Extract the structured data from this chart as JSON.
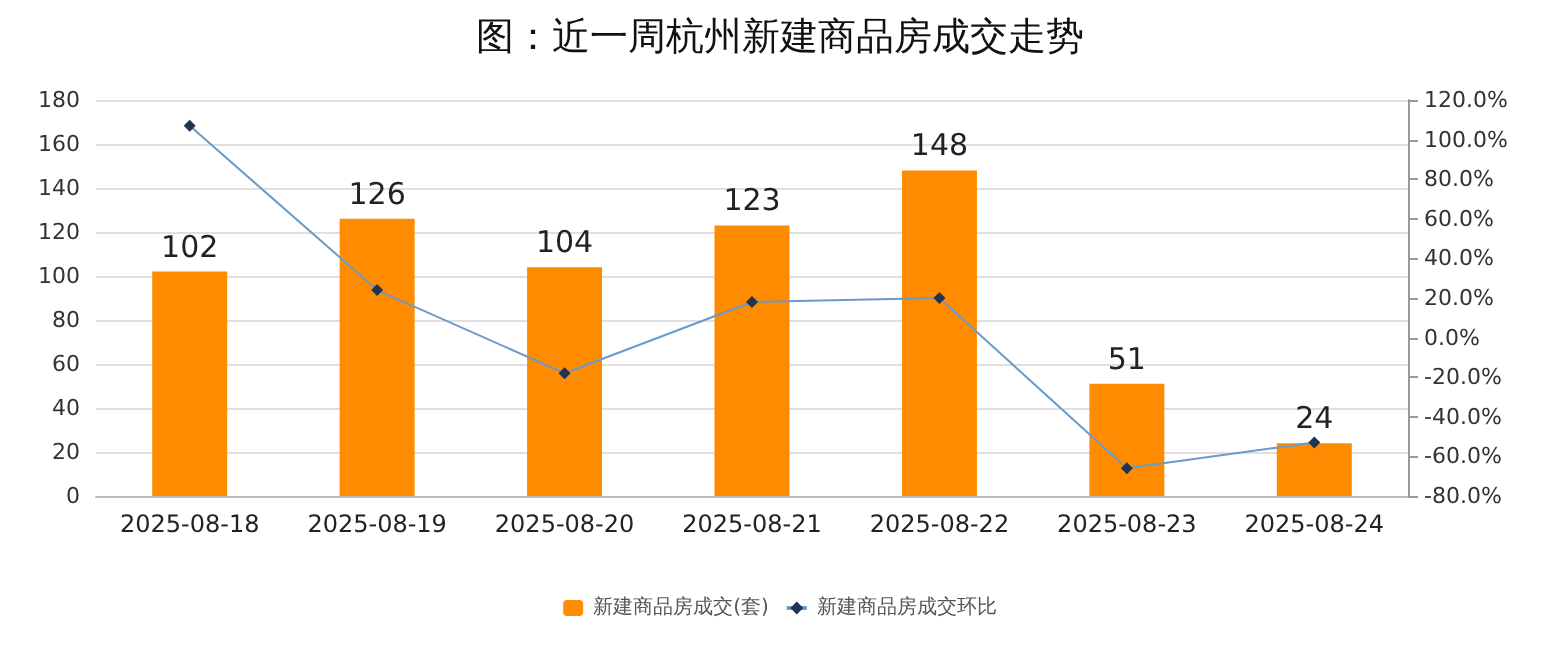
{
  "chart_data": {
    "type": "bar",
    "title": "图：近一周杭州新建商品房成交走势",
    "categories": [
      "2025-08-18",
      "2025-08-19",
      "2025-08-20",
      "2025-08-21",
      "2025-08-22",
      "2025-08-23",
      "2025-08-24"
    ],
    "series": [
      {
        "name": "新建商品房成交(套)",
        "color": "#ff8c00",
        "values": [
          102,
          126,
          104,
          123,
          148,
          51,
          24
        ],
        "value_labels": [
          "102",
          "126",
          "104",
          "123",
          "148",
          "51",
          "24"
        ]
      },
      {
        "name": "新建商品房成交环比",
        "type": "line",
        "axis": "y2",
        "color": "#6a9bc8",
        "marker": "diamond",
        "values": [
          107,
          24,
          -18,
          18,
          20,
          -66,
          -53
        ]
      }
    ],
    "ylim": [
      0,
      180
    ],
    "yticks": [
      0,
      20,
      40,
      60,
      80,
      100,
      120,
      140,
      160,
      180
    ],
    "y2lim": [
      -80,
      120
    ],
    "y2ticks": [
      {
        "value": -80,
        "label": "-80.0%"
      },
      {
        "value": -60,
        "label": "-60.0%"
      },
      {
        "value": -40,
        "label": "-40.0%"
      },
      {
        "value": -20,
        "label": "-20.0%"
      },
      {
        "value": 0,
        "label": "0.0%"
      },
      {
        "value": 20,
        "label": "20.0%"
      },
      {
        "value": 40,
        "label": "40.0%"
      },
      {
        "value": 60,
        "label": "60.0%"
      },
      {
        "value": 80,
        "label": "80.0%"
      },
      {
        "value": 100,
        "label": "100.0%"
      },
      {
        "value": 120,
        "label": "120.0%"
      }
    ],
    "grid": "y",
    "legend": "bottom"
  }
}
